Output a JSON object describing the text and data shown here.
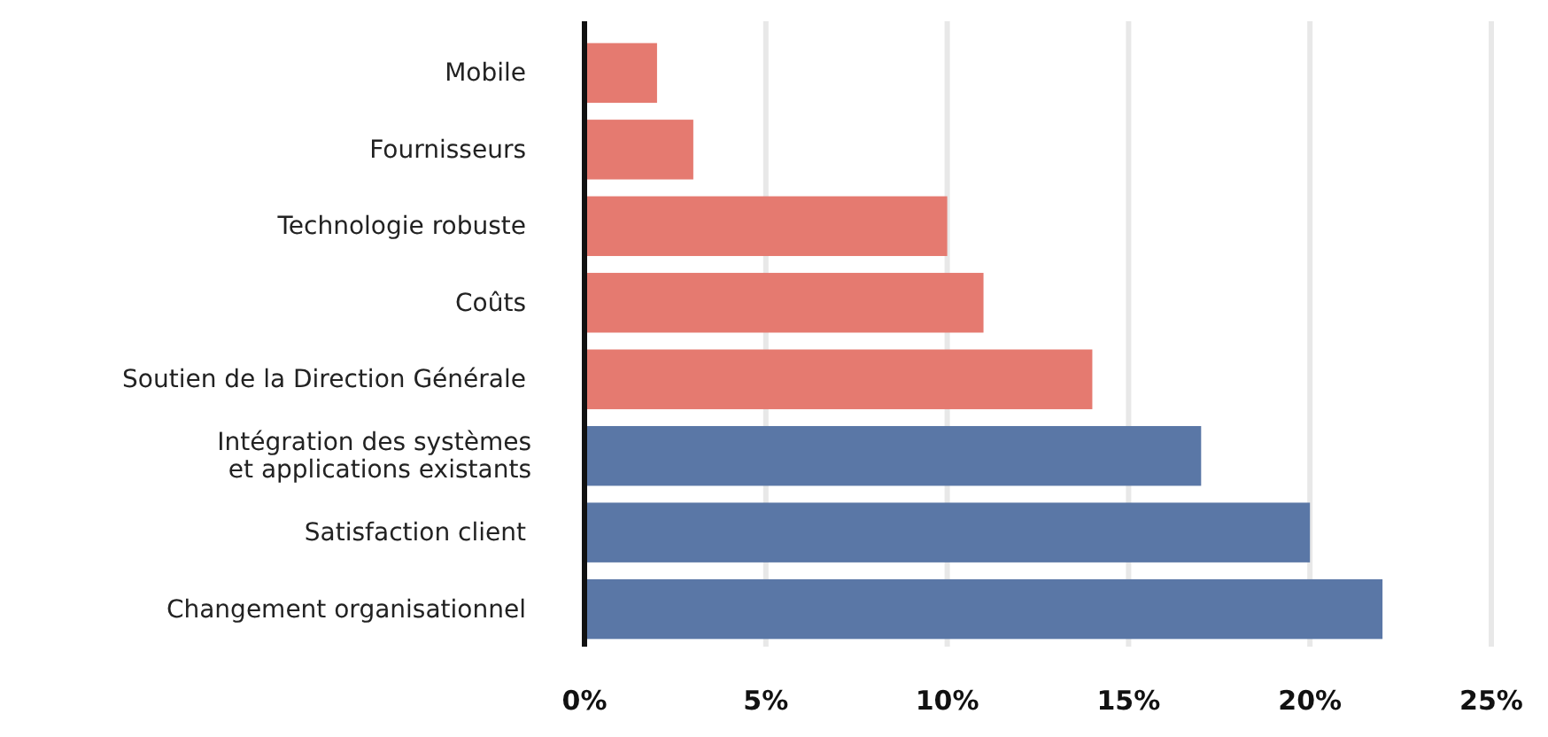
{
  "chart_data": {
    "type": "bar",
    "orientation": "horizontal",
    "categories": [
      "Mobile",
      "Fournisseurs",
      "Technologie robuste",
      "Coûts",
      "Soutien de la Direction Générale",
      "Intégration des systèmes et applications existants",
      "Satisfaction client",
      "Changement organisationnel"
    ],
    "values": [
      2,
      3,
      10,
      11,
      14,
      17,
      20,
      22
    ],
    "colors": [
      "#e57a70",
      "#e57a70",
      "#e57a70",
      "#e57a70",
      "#e57a70",
      "#5a77a6",
      "#5a77a6",
      "#5a77a6"
    ],
    "xlim": [
      0,
      25
    ],
    "xticks": [
      {
        "value": 0,
        "label": "0%"
      },
      {
        "value": 5,
        "label": "5%"
      },
      {
        "value": 10,
        "label": "10%"
      },
      {
        "value": 15,
        "label": "15%"
      },
      {
        "value": 20,
        "label": "20%"
      },
      {
        "value": 25,
        "label": "25%"
      }
    ],
    "grid": "x"
  }
}
